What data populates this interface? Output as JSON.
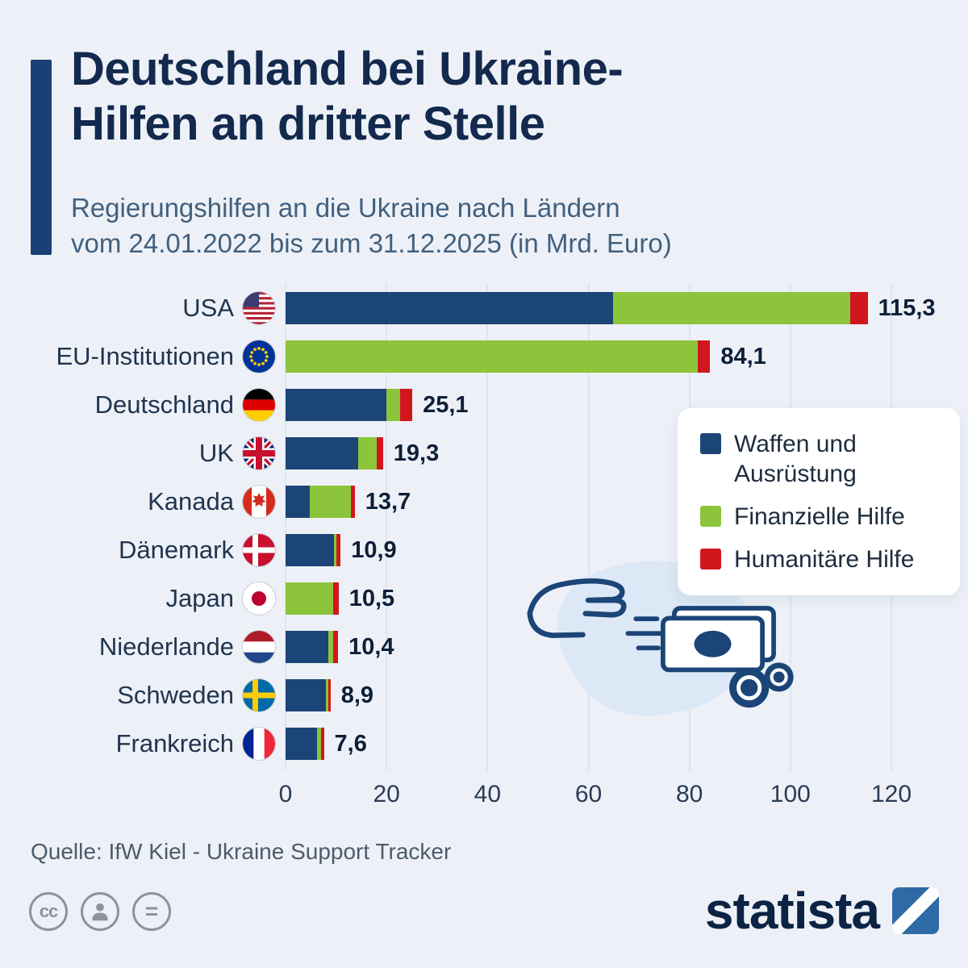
{
  "title": {
    "line1": "Deutschland bei Ukraine-",
    "line2": "Hilfen an dritter Stelle"
  },
  "subtitle": {
    "line1": "Regierungshilfen an die Ukraine nach Ländern",
    "line2": "vom 24.01.2022 bis zum 31.12.2025 (in Mrd. Euro)"
  },
  "legend": {
    "items": [
      {
        "label": "Waffen und Ausrüstung"
      },
      {
        "label": "Finanzielle Hilfe"
      },
      {
        "label": "Humanitäre Hilfe"
      }
    ]
  },
  "chart_data": {
    "type": "bar",
    "orientation": "horizontal",
    "stacked": true,
    "title": "Regierungshilfen an die Ukraine nach Ländern vom 24.01.2022 bis zum 31.12.2025",
    "unit": "Mrd. Euro",
    "xlim": [
      0,
      120
    ],
    "x_ticks": [
      0,
      20,
      40,
      60,
      80,
      100,
      120
    ],
    "x_tick_labels": [
      "0",
      "20",
      "40",
      "60",
      "80",
      "100",
      "120"
    ],
    "series_names": [
      "Waffen und Ausrüstung",
      "Finanzielle Hilfe",
      "Humanitäre Hilfe"
    ],
    "colors": [
      "#1b4577",
      "#8cc43c",
      "#d2161e"
    ],
    "grid": true,
    "legend_position": "right",
    "rows": [
      {
        "country": "USA",
        "flag_icon": "usa-flag-icon",
        "total": 115.3,
        "total_label": "115,3",
        "segments": [
          64.8,
          47.0,
          3.5
        ]
      },
      {
        "country": "EU-Institutionen",
        "flag_icon": "eu-flag-icon",
        "total": 84.1,
        "total_label": "84,1",
        "segments": [
          0,
          81.6,
          2.5
        ]
      },
      {
        "country": "Deutschland",
        "flag_icon": "germany-flag-icon",
        "total": 25.1,
        "total_label": "25,1",
        "segments": [
          20.0,
          2.7,
          2.4
        ]
      },
      {
        "country": "UK",
        "flag_icon": "uk-flag-icon",
        "total": 19.3,
        "total_label": "19,3",
        "segments": [
          14.4,
          3.7,
          1.2
        ]
      },
      {
        "country": "Kanada",
        "flag_icon": "canada-flag-icon",
        "total": 13.7,
        "total_label": "13,7",
        "segments": [
          4.8,
          8.2,
          0.7
        ]
      },
      {
        "country": "Dänemark",
        "flag_icon": "denmark-flag-icon",
        "total": 10.9,
        "total_label": "10,9",
        "segments": [
          9.6,
          0.5,
          0.8
        ]
      },
      {
        "country": "Japan",
        "flag_icon": "japan-flag-icon",
        "total": 10.5,
        "total_label": "10,5",
        "segments": [
          0,
          9.5,
          1.0
        ]
      },
      {
        "country": "Niederlande",
        "flag_icon": "netherlands-flag-icon",
        "total": 10.4,
        "total_label": "10,4",
        "segments": [
          8.5,
          0.9,
          1.0
        ]
      },
      {
        "country": "Schweden",
        "flag_icon": "sweden-flag-icon",
        "total": 8.9,
        "total_label": "8,9",
        "segments": [
          8.0,
          0.4,
          0.5
        ]
      },
      {
        "country": "Frankreich",
        "flag_icon": "france-flag-icon",
        "total": 7.6,
        "total_label": "7,6",
        "segments": [
          6.3,
          0.8,
          0.5
        ]
      }
    ]
  },
  "source": "Quelle: IfW Kiel - Ukraine Support Tracker",
  "branding": {
    "logo_text": "statista"
  },
  "accent_color": "#1a4076"
}
